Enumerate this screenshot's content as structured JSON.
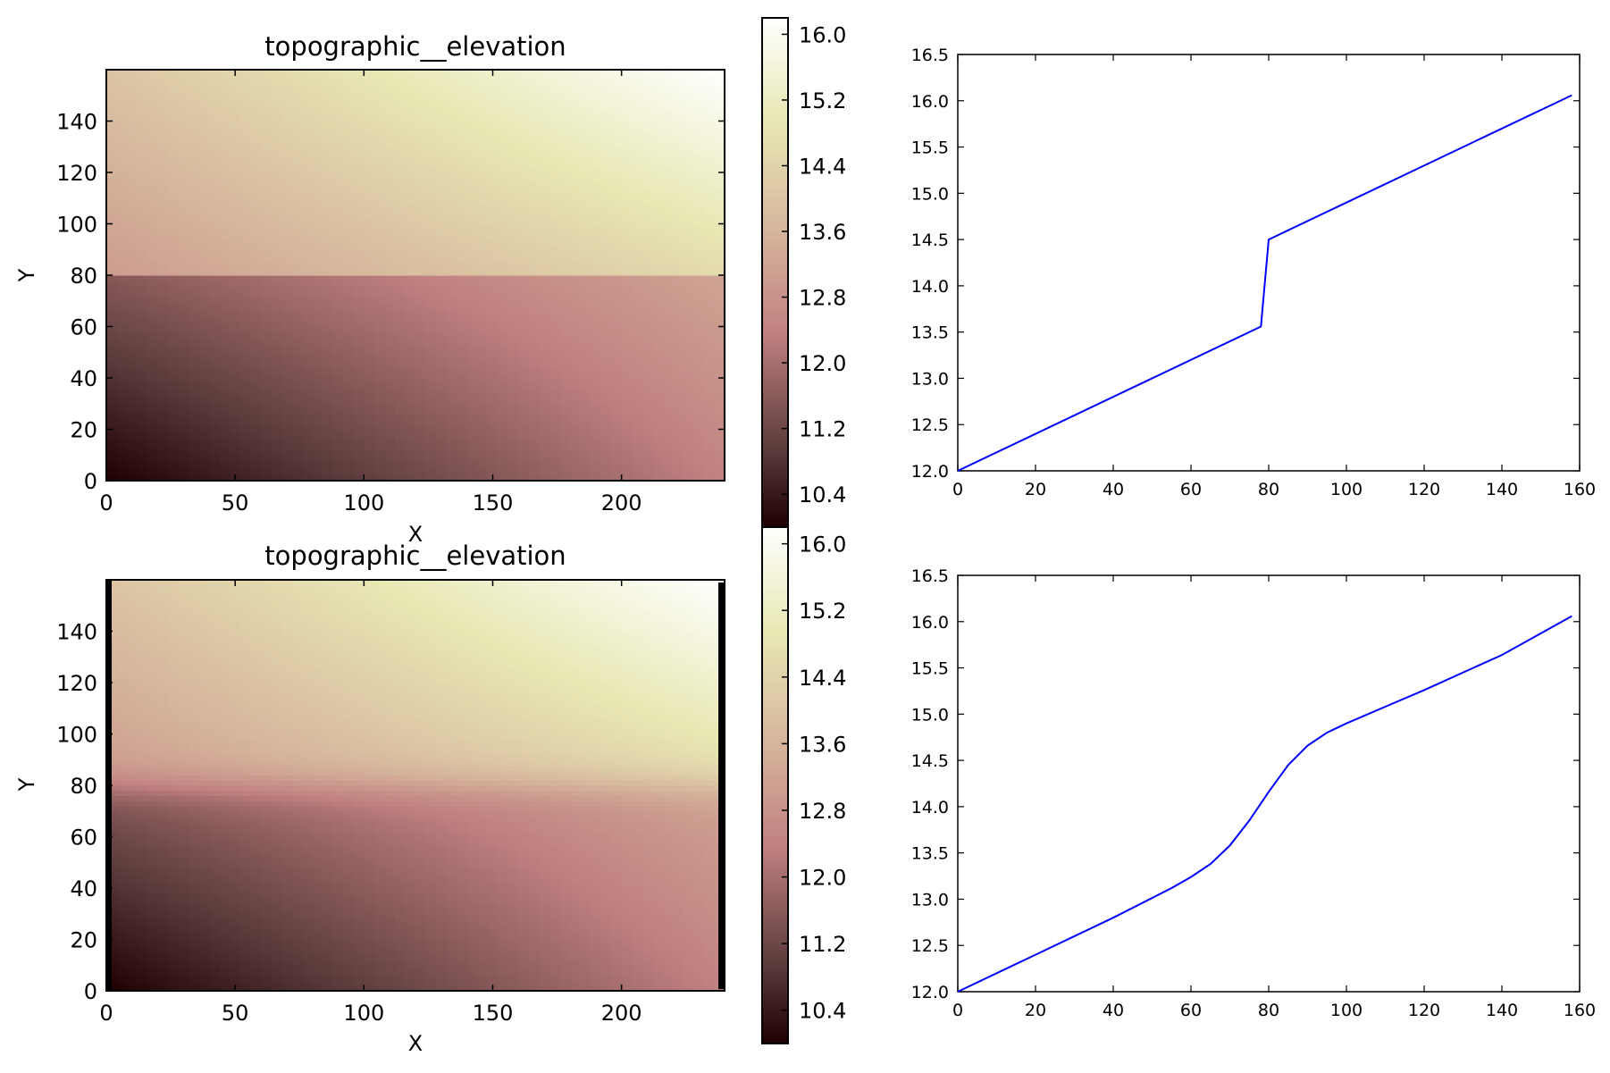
{
  "chart_data": [
    {
      "type": "heatmap",
      "title": "topographic__elevation",
      "xlabel": "X",
      "ylabel": "Y",
      "xlim": [
        0,
        240
      ],
      "ylim": [
        0,
        160
      ],
      "xticks": [
        0,
        50,
        100,
        150,
        200
      ],
      "yticks": [
        0,
        20,
        40,
        60,
        80,
        100,
        120,
        140
      ],
      "colormap": "pink",
      "colorbar": {
        "range": [
          10.0,
          16.2
        ],
        "ticks": [
          "16.0",
          "15.2",
          "14.4",
          "13.6",
          "12.8",
          "12.0",
          "11.2",
          "10.4"
        ]
      },
      "field": {
        "below_step_y": 80,
        "z_origin": 10.0,
        "z_top_right": 16.2,
        "z_bottom_right": 12.4,
        "z_just_above_step_left": 13.0,
        "z_top_left": 14.0,
        "z_step_right": 13.2,
        "transition": "sharp"
      }
    },
    {
      "type": "line",
      "xlim": [
        0,
        160
      ],
      "ylim": [
        12.0,
        16.5
      ],
      "xticks": [
        0,
        20,
        40,
        60,
        80,
        100,
        120,
        140,
        160
      ],
      "yticks": [
        "12.0",
        "12.5",
        "13.0",
        "13.5",
        "14.0",
        "14.5",
        "15.0",
        "15.5",
        "16.0",
        "16.5"
      ],
      "series": [
        {
          "color": "#0000ff",
          "x": [
            0,
            78,
            80,
            158
          ],
          "y": [
            12.0,
            13.56,
            14.5,
            16.06
          ]
        }
      ]
    },
    {
      "type": "heatmap",
      "title": "topographic__elevation",
      "xlabel": "X",
      "ylabel": "Y",
      "xlim": [
        0,
        240
      ],
      "ylim": [
        0,
        160
      ],
      "xticks": [
        0,
        50,
        100,
        150,
        200
      ],
      "yticks": [
        0,
        20,
        40,
        60,
        80,
        100,
        120,
        140
      ],
      "colormap": "pink",
      "colorbar": {
        "range": [
          10.0,
          16.2
        ],
        "ticks": [
          "16.0",
          "15.2",
          "14.4",
          "13.6",
          "12.8",
          "12.0",
          "11.2",
          "10.4"
        ]
      },
      "field": {
        "below_step_y": 80,
        "z_origin": 10.0,
        "z_top_right": 16.2,
        "z_bottom_right": 12.4,
        "z_just_above_step_left": 13.0,
        "z_top_left": 14.0,
        "z_step_right": 13.2,
        "transition": "smooth"
      }
    },
    {
      "type": "line",
      "xlim": [
        0,
        160
      ],
      "ylim": [
        12.0,
        16.5
      ],
      "xticks": [
        0,
        20,
        40,
        60,
        80,
        100,
        120,
        140,
        160
      ],
      "yticks": [
        "12.0",
        "12.5",
        "13.0",
        "13.5",
        "14.0",
        "14.5",
        "15.0",
        "15.5",
        "16.0",
        "16.5"
      ],
      "series": [
        {
          "color": "#0000ff",
          "x": [
            0,
            20,
            40,
            55,
            60,
            65,
            70,
            75,
            80,
            85,
            90,
            95,
            100,
            110,
            120,
            140,
            158
          ],
          "y": [
            12.0,
            12.4,
            12.8,
            13.12,
            13.24,
            13.38,
            13.58,
            13.85,
            14.16,
            14.45,
            14.66,
            14.8,
            14.9,
            15.08,
            15.26,
            15.64,
            16.06
          ]
        }
      ]
    }
  ]
}
